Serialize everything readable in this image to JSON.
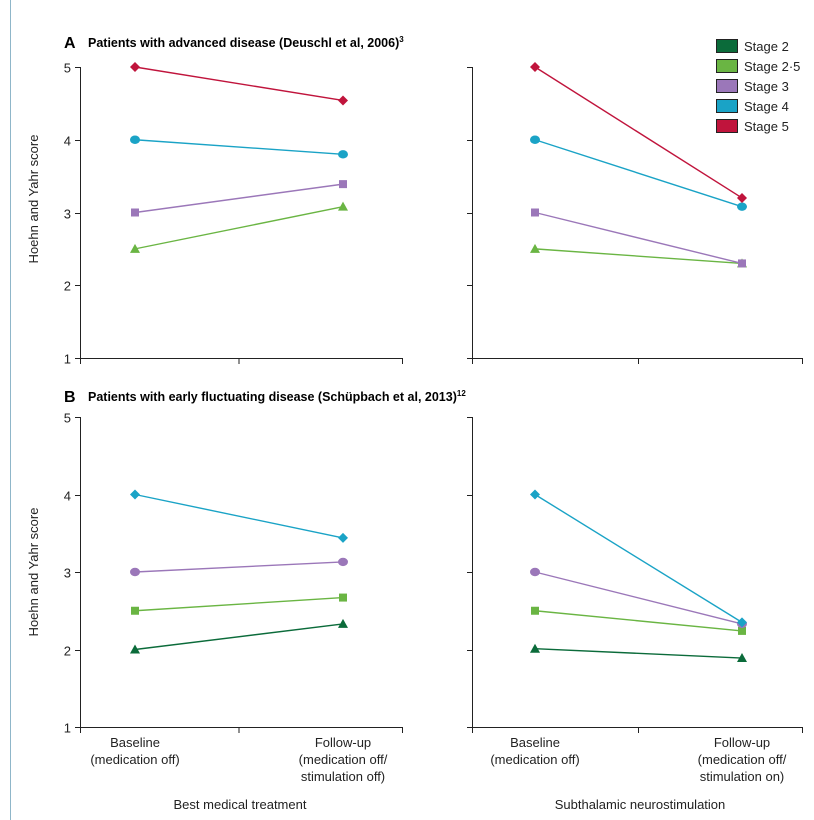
{
  "panels": [
    {
      "letter": "A",
      "title": "Patients with advanced disease (Deuschl et al, 2006)",
      "superscript": "3",
      "ylabel": "Hoehn and Yahr score"
    },
    {
      "letter": "B",
      "title": "Patients with early fluctuating disease (Schüpbach et al, 2013)",
      "superscript": "12",
      "ylabel": "Hoehn and Yahr score"
    }
  ],
  "groups": {
    "left": "Best medical treatment",
    "right": "Subthalamic neurostimulation"
  },
  "categories": {
    "left": [
      [
        "Baseline",
        "(medication off)"
      ],
      [
        "Follow-up",
        "(medication off/",
        "stimulation off)"
      ]
    ],
    "right": [
      [
        "Baseline",
        "(medication off)"
      ],
      [
        "Follow-up",
        "(medication off/",
        "stimulation on)"
      ]
    ]
  },
  "legend": {
    "placement": "top-right",
    "items": [
      {
        "label": "Stage 2",
        "color": "#0b6b3a"
      },
      {
        "label": "Stage 2·5",
        "color": "#6ab543"
      },
      {
        "label": "Stage 3",
        "color": "#9b77b9"
      },
      {
        "label": "Stage 4",
        "color": "#1aa3c6"
      },
      {
        "label": "Stage 5",
        "color": "#c0143c"
      }
    ]
  },
  "chart_data": [
    {
      "type": "line",
      "panel": "A",
      "group": "Best medical treatment",
      "ylim": [
        1,
        5
      ],
      "yticks": [
        1,
        2,
        3,
        4,
        5
      ],
      "series": [
        {
          "name": "Stage 2·5",
          "values": [
            2.5,
            3.08
          ],
          "color": "#6ab543",
          "marker": "triangle"
        },
        {
          "name": "Stage 3",
          "values": [
            3.0,
            3.39
          ],
          "color": "#9b77b9",
          "marker": "square"
        },
        {
          "name": "Stage 4",
          "values": [
            4.0,
            3.8
          ],
          "color": "#1aa3c6",
          "marker": "circle"
        },
        {
          "name": "Stage 5",
          "values": [
            5.0,
            4.54
          ],
          "color": "#c0143c",
          "marker": "diamond"
        }
      ]
    },
    {
      "type": "line",
      "panel": "A",
      "group": "Subthalamic neurostimulation",
      "ylim": [
        1,
        5
      ],
      "yticks": [
        1,
        2,
        3,
        4,
        5
      ],
      "series": [
        {
          "name": "Stage 2·5",
          "values": [
            2.5,
            2.3
          ],
          "color": "#6ab543",
          "marker": "triangle"
        },
        {
          "name": "Stage 3",
          "values": [
            3.0,
            2.3
          ],
          "color": "#9b77b9",
          "marker": "square"
        },
        {
          "name": "Stage 4",
          "values": [
            4.0,
            3.08
          ],
          "color": "#1aa3c6",
          "marker": "circle"
        },
        {
          "name": "Stage 5",
          "values": [
            5.0,
            3.2
          ],
          "color": "#c0143c",
          "marker": "diamond"
        }
      ]
    },
    {
      "type": "line",
      "panel": "B",
      "group": "Best medical treatment",
      "ylim": [
        1,
        5
      ],
      "yticks": [
        1,
        2,
        3,
        4,
        5
      ],
      "series": [
        {
          "name": "Stage 2",
          "values": [
            2.0,
            2.33
          ],
          "color": "#0b6b3a",
          "marker": "triangle"
        },
        {
          "name": "Stage 2·5",
          "values": [
            2.5,
            2.67
          ],
          "color": "#6ab543",
          "marker": "square"
        },
        {
          "name": "Stage 3",
          "values": [
            3.0,
            3.13
          ],
          "color": "#9b77b9",
          "marker": "circle"
        },
        {
          "name": "Stage 4",
          "values": [
            4.0,
            3.44
          ],
          "color": "#1aa3c6",
          "marker": "diamond"
        }
      ]
    },
    {
      "type": "line",
      "panel": "B",
      "group": "Subthalamic neurostimulation",
      "ylim": [
        1,
        5
      ],
      "yticks": [
        1,
        2,
        3,
        4,
        5
      ],
      "series": [
        {
          "name": "Stage 2",
          "values": [
            2.01,
            1.89
          ],
          "color": "#0b6b3a",
          "marker": "triangle"
        },
        {
          "name": "Stage 2·5",
          "values": [
            2.5,
            2.24
          ],
          "color": "#6ab543",
          "marker": "square"
        },
        {
          "name": "Stage 3",
          "values": [
            3.0,
            2.33
          ],
          "color": "#9b77b9",
          "marker": "circle"
        },
        {
          "name": "Stage 4",
          "values": [
            4.0,
            2.35
          ],
          "color": "#1aa3c6",
          "marker": "diamond"
        }
      ]
    }
  ]
}
